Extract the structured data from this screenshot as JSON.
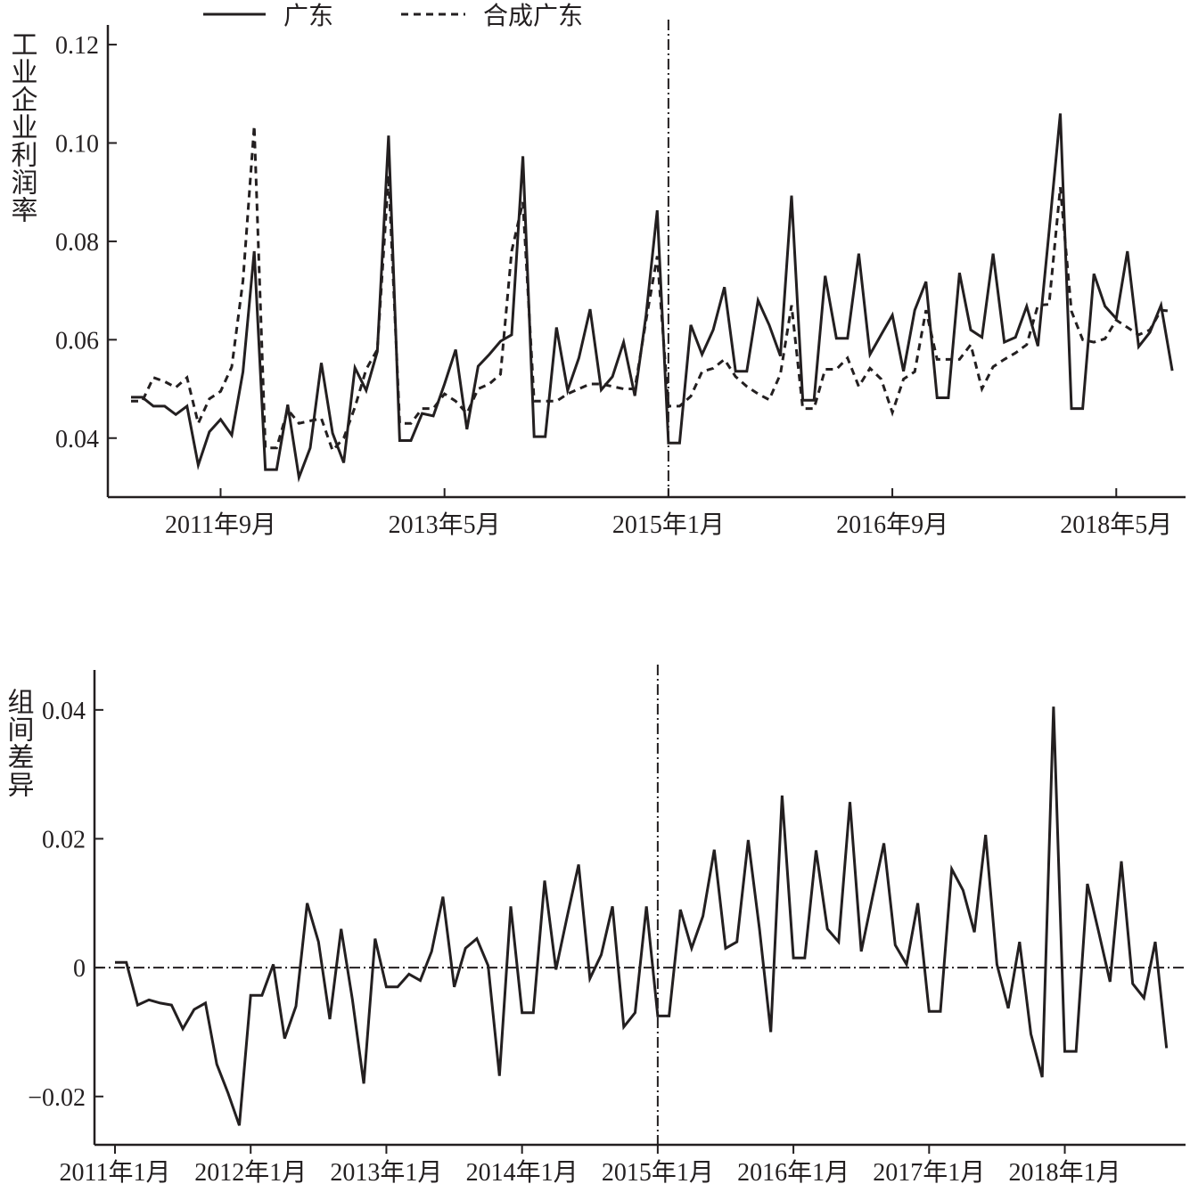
{
  "chart_data": [
    {
      "type": "line",
      "ylabel": "工业企业利润率",
      "ylim": [
        0.028,
        0.124
      ],
      "yticks": [
        "0.04",
        "0.06",
        "0.08",
        "0.10",
        "0.12"
      ],
      "xtick_labels": [
        "2011年9月",
        "2013年5月",
        "2015年1月",
        "2016年9月",
        "2018年5月"
      ],
      "x_start": "2011年1月",
      "x_end": "2018年10月",
      "reference_vline": "2015年1月",
      "legend_position": "top",
      "series": [
        {
          "name": "广东",
          "style": "solid",
          "color": "#231f20",
          "values": [
            0.0483,
            0.0483,
            0.0465,
            0.0465,
            0.0448,
            0.0465,
            0.0345,
            0.0413,
            0.0438,
            0.0406,
            0.0535,
            0.078,
            0.0336,
            0.0336,
            0.0468,
            0.032,
            0.038,
            0.0553,
            0.041,
            0.035,
            0.0543,
            0.0497,
            0.0576,
            0.1015,
            0.0395,
            0.0395,
            0.045,
            0.0445,
            0.051,
            0.058,
            0.0418,
            0.0546,
            0.057,
            0.0597,
            0.061,
            0.0973,
            0.0403,
            0.0403,
            0.0625,
            0.0497,
            0.0563,
            0.0662,
            0.0498,
            0.0525,
            0.0595,
            0.0486,
            0.065,
            0.0863,
            0.039,
            0.039,
            0.063,
            0.057,
            0.062,
            0.0707,
            0.0536,
            0.0536,
            0.068,
            0.063,
            0.0567,
            0.0893,
            0.0477,
            0.0477,
            0.073,
            0.0603,
            0.0603,
            0.0775,
            0.057,
            0.061,
            0.065,
            0.0536,
            0.066,
            0.0718,
            0.0482,
            0.0482,
            0.0736,
            0.062,
            0.0605,
            0.0775,
            0.0595,
            0.0605,
            0.0668,
            0.0587,
            0.082,
            0.106,
            0.046,
            0.046,
            0.0734,
            0.0668,
            0.0643,
            0.078,
            0.0586,
            0.0615,
            0.067,
            0.0537
          ]
        },
        {
          "name": "合成广东",
          "style": "dashed",
          "color": "#231f20",
          "values": [
            0.0475,
            0.0475,
            0.0523,
            0.0515,
            0.0503,
            0.0523,
            0.043,
            0.048,
            0.0495,
            0.0545,
            0.072,
            0.1035,
            0.038,
            0.038,
            0.0458,
            0.043,
            0.0435,
            0.044,
            0.0375,
            0.04,
            0.0463,
            0.054,
            0.058,
            0.0935,
            0.043,
            0.043,
            0.046,
            0.046,
            0.049,
            0.0475,
            0.045,
            0.05,
            0.051,
            0.053,
            0.078,
            0.088,
            0.0475,
            0.0475,
            0.0475,
            0.049,
            0.05,
            0.051,
            0.051,
            0.0505,
            0.05,
            0.05,
            0.064,
            0.077,
            0.0465,
            0.0465,
            0.0485,
            0.0535,
            0.0542,
            0.056,
            0.0525,
            0.0505,
            0.049,
            0.0478,
            0.053,
            0.067,
            0.046,
            0.046,
            0.054,
            0.054,
            0.0563,
            0.0505,
            0.0542,
            0.052,
            0.0452,
            0.052,
            0.0535,
            0.066,
            0.056,
            0.056,
            0.056,
            0.059,
            0.05,
            0.0545,
            0.056,
            0.0573,
            0.059,
            0.067,
            0.0672,
            0.091,
            0.0658,
            0.06,
            0.0595,
            0.0602,
            0.064,
            0.0625,
            0.061,
            0.062,
            0.066,
            0.0658
          ]
        }
      ]
    },
    {
      "type": "line",
      "ylabel": "组间差异",
      "ylim": [
        -0.0275,
        0.0462
      ],
      "yticks": [
        "−0.02",
        "0",
        "0.02",
        "0.04"
      ],
      "xtick_labels": [
        "2011年1月",
        "2012年1月",
        "2013年1月",
        "2014年1月",
        "2015年1月",
        "2016年1月",
        "2017年1月",
        "2018年1月"
      ],
      "x_start": "2011年1月",
      "x_end": "2018年10月",
      "reference_vline": "2015年1月",
      "reference_hline": 0,
      "series": [
        {
          "name": "",
          "style": "solid",
          "color": "#231f20",
          "values": [
            0.0008,
            0.0008,
            -0.0058,
            -0.005,
            -0.0055,
            -0.0058,
            -0.0095,
            -0.0065,
            -0.0055,
            -0.015,
            -0.0195,
            -0.0245,
            -0.0043,
            -0.0043,
            0.0005,
            -0.011,
            -0.006,
            0.01,
            0.004,
            -0.008,
            0.006,
            -0.005,
            -0.018,
            0.0045,
            -0.003,
            -0.003,
            -0.001,
            -0.002,
            0.0025,
            0.011,
            -0.003,
            0.003,
            0.0045,
            0.0003,
            -0.0168,
            0.0095,
            -0.007,
            -0.007,
            0.0135,
            -0.0003,
            0.008,
            0.016,
            -0.0017,
            0.002,
            0.0095,
            -0.0092,
            -0.007,
            0.0095,
            -0.0075,
            -0.0075,
            0.009,
            0.003,
            0.008,
            0.0183,
            0.003,
            0.004,
            0.0198,
            0.006,
            -0.01,
            0.0267,
            0.0015,
            0.0015,
            0.0182,
            0.006,
            0.004,
            0.0257,
            0.0025,
            0.011,
            0.0193,
            0.0035,
            0.0005,
            0.01,
            -0.0068,
            -0.0068,
            0.0153,
            0.012,
            0.0055,
            0.0206,
            0.0005,
            -0.0063,
            0.004,
            -0.0103,
            -0.017,
            0.0405,
            -0.013,
            -0.013,
            0.013,
            0.0055,
            -0.0022,
            0.0165,
            -0.0025,
            -0.0047,
            0.004,
            -0.0125
          ]
        }
      ]
    }
  ]
}
